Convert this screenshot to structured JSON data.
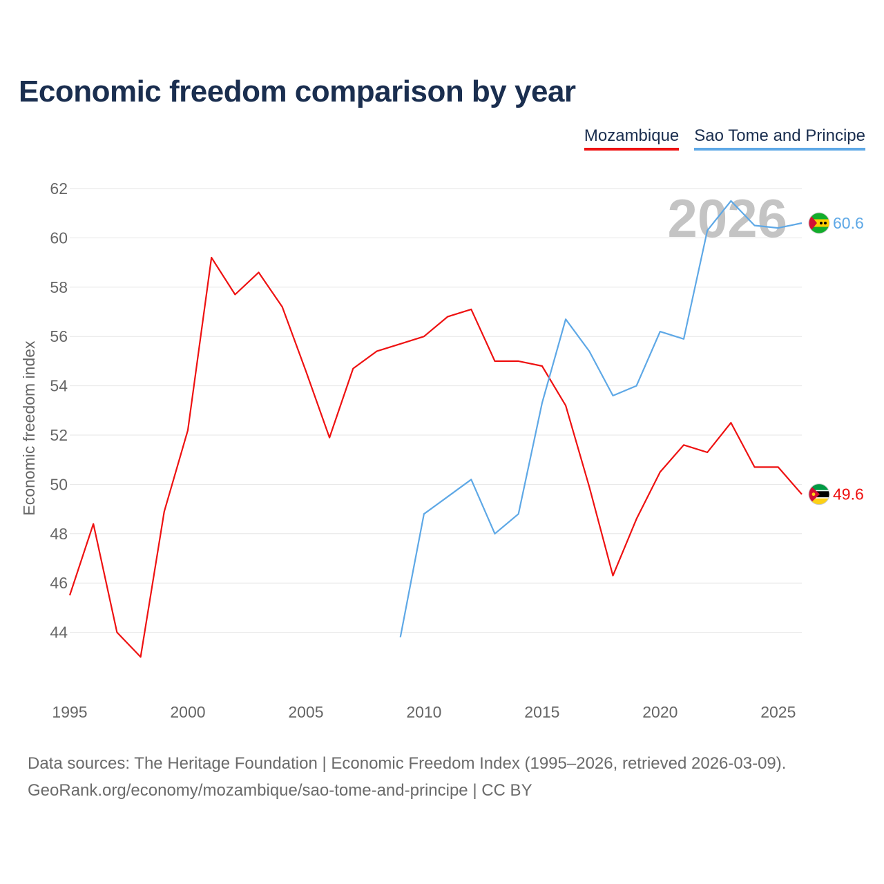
{
  "chart_data": {
    "type": "line",
    "title": "Economic freedom comparison by year",
    "xlabel": "",
    "ylabel": "Economic freedom index",
    "xlim": [
      1995,
      2026
    ],
    "ylim": [
      42,
      62
    ],
    "yticks": [
      44,
      46,
      48,
      50,
      52,
      54,
      56,
      58,
      60,
      62
    ],
    "xticks": [
      1995,
      2000,
      2005,
      2010,
      2015,
      2020,
      2025
    ],
    "current_year": "2026",
    "series": [
      {
        "name": "Mozambique",
        "color": "#ee1111",
        "flag_icon": "mozambique-flag-icon",
        "end_label": "49.6",
        "x": [
          1995,
          1996,
          1997,
          1998,
          1999,
          2000,
          2001,
          2002,
          2003,
          2004,
          2005,
          2006,
          2007,
          2008,
          2009,
          2010,
          2011,
          2012,
          2013,
          2014,
          2015,
          2016,
          2017,
          2018,
          2019,
          2020,
          2021,
          2022,
          2023,
          2024,
          2025,
          2026
        ],
        "y": [
          45.5,
          48.4,
          44.0,
          43.0,
          48.9,
          52.2,
          59.2,
          57.7,
          58.6,
          57.2,
          54.6,
          51.9,
          54.7,
          55.4,
          55.7,
          56.0,
          56.8,
          57.1,
          55.0,
          55.0,
          54.8,
          53.2,
          49.9,
          46.3,
          48.6,
          50.5,
          51.6,
          51.3,
          52.5,
          50.7,
          50.7,
          49.6
        ]
      },
      {
        "name": "Sao Tome and Principe",
        "color": "#5ea8e6",
        "flag_icon": "sao-tome-flag-icon",
        "end_label": "60.6",
        "x": [
          2009,
          2010,
          2011,
          2012,
          2013,
          2014,
          2015,
          2016,
          2017,
          2018,
          2019,
          2020,
          2021,
          2022,
          2023,
          2024,
          2025,
          2026
        ],
        "y": [
          43.8,
          48.8,
          49.5,
          50.2,
          48.0,
          48.8,
          53.3,
          56.7,
          55.4,
          53.6,
          54.0,
          56.2,
          55.9,
          60.3,
          61.5,
          60.5,
          60.4,
          60.6
        ]
      }
    ]
  },
  "footer": {
    "line1": "Data sources: The Heritage Foundation | Economic Freedom Index (1995–2026, retrieved 2026-03-09).",
    "line2": "GeoRank.org/economy/mozambique/sao-tome-and-principe | CC BY"
  }
}
